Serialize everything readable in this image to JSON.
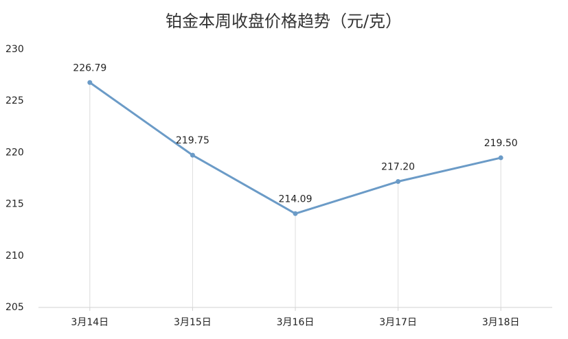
{
  "chart_data": {
    "type": "line",
    "title": "铂金本周收盘价格趋势（元/克）",
    "categories": [
      "3月14日",
      "3月15日",
      "3月16日",
      "3月17日",
      "3月18日"
    ],
    "values": [
      226.79,
      219.75,
      214.09,
      217.2,
      219.5
    ],
    "value_labels": [
      "226.79",
      "219.75",
      "214.09",
      "217.20",
      "219.50"
    ],
    "color": "#6b9bc7",
    "ylim": [
      205,
      230
    ],
    "yticks": [
      205,
      210,
      215,
      220,
      225,
      230
    ],
    "drop_lines": true
  }
}
